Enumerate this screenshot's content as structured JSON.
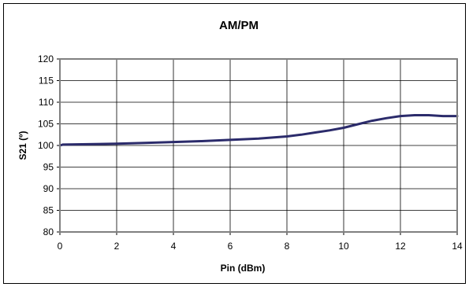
{
  "chart_data": {
    "type": "line",
    "title": "AM/PM",
    "xlabel": "Pin (dBm)",
    "ylabel": "S21 (º)",
    "xlim": [
      0,
      14
    ],
    "ylim": [
      80,
      120
    ],
    "x_ticks": [
      "0",
      "2",
      "4",
      "6",
      "8",
      "10",
      "12",
      "14"
    ],
    "y_ticks": [
      "80",
      "85",
      "90",
      "95",
      "100",
      "105",
      "110",
      "115",
      "120"
    ],
    "grid": true,
    "legend": "none",
    "series": [
      {
        "color": "#2b2b6b",
        "x": [
          0,
          0.1,
          1,
          2,
          3,
          4,
          5,
          6,
          7,
          8,
          8.5,
          9,
          9.5,
          10,
          10.5,
          11,
          11.5,
          12,
          12.5,
          13,
          13.5,
          14
        ],
        "y": [
          100.0,
          100.2,
          100.3,
          100.4,
          100.6,
          100.8,
          101.0,
          101.3,
          101.6,
          102.1,
          102.5,
          103.0,
          103.5,
          104.1,
          104.9,
          105.7,
          106.3,
          106.8,
          107.0,
          107.0,
          106.8,
          106.8
        ]
      }
    ]
  }
}
